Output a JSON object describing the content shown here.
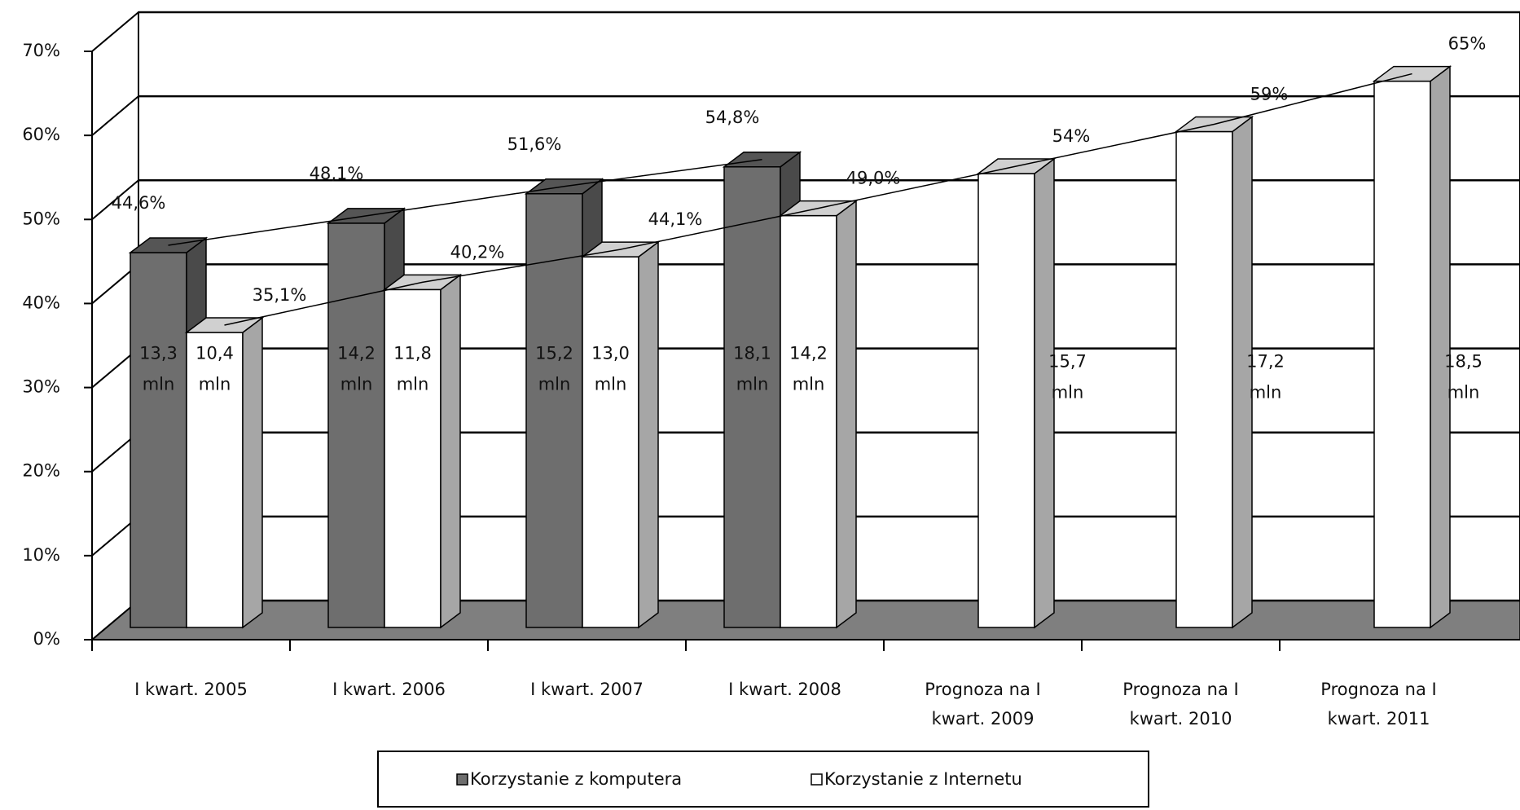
{
  "chart_data": {
    "type": "bar3d",
    "categories": [
      "I kwart. 2005",
      "I kwart. 2006",
      "I kwart. 2007",
      "I kwart. 2008",
      "Prognoza na I kwart. 2009",
      "Prognoza na I kwart. 2010",
      "Prognoza na I kwart. 2011"
    ],
    "series": [
      {
        "name": "Korzystanie z komputera",
        "color": "#6e6e6e",
        "values": [
          44.6,
          48.1,
          51.6,
          54.8,
          null,
          null,
          null
        ],
        "value_labels": [
          "44,6%",
          "48,1%",
          "51,6%",
          "54,8%",
          null,
          null,
          null
        ],
        "annotations": [
          "13,3 mln",
          "14,2 mln",
          "15,2 mln",
          "18,1 mln",
          null,
          null,
          null
        ]
      },
      {
        "name": "Korzystanie z Internetu",
        "color": "#ffffff",
        "values": [
          35.1,
          40.2,
          44.1,
          49.0,
          54,
          59,
          65
        ],
        "value_labels": [
          "35,1%",
          "40,2%",
          "44,1%",
          "49,0%",
          "54%",
          "59%",
          "65%"
        ],
        "annotations": [
          "10,4 mln",
          "11,8 mln",
          "13,0 mln",
          "14,2 mln",
          "15,7 mln",
          "17,2 mln",
          "18,5 mln"
        ]
      }
    ],
    "ylim": [
      0,
      70
    ],
    "yticks": [
      {
        "value": 0,
        "label": "0%"
      },
      {
        "value": 10,
        "label": "10%"
      },
      {
        "value": 20,
        "label": "20%"
      },
      {
        "value": 30,
        "label": "30%"
      },
      {
        "value": 40,
        "label": "40%"
      },
      {
        "value": 50,
        "label": "50%"
      },
      {
        "value": 60,
        "label": "60%"
      },
      {
        "value": 70,
        "label": "70%"
      }
    ],
    "grid": true,
    "legend": "bottom"
  }
}
